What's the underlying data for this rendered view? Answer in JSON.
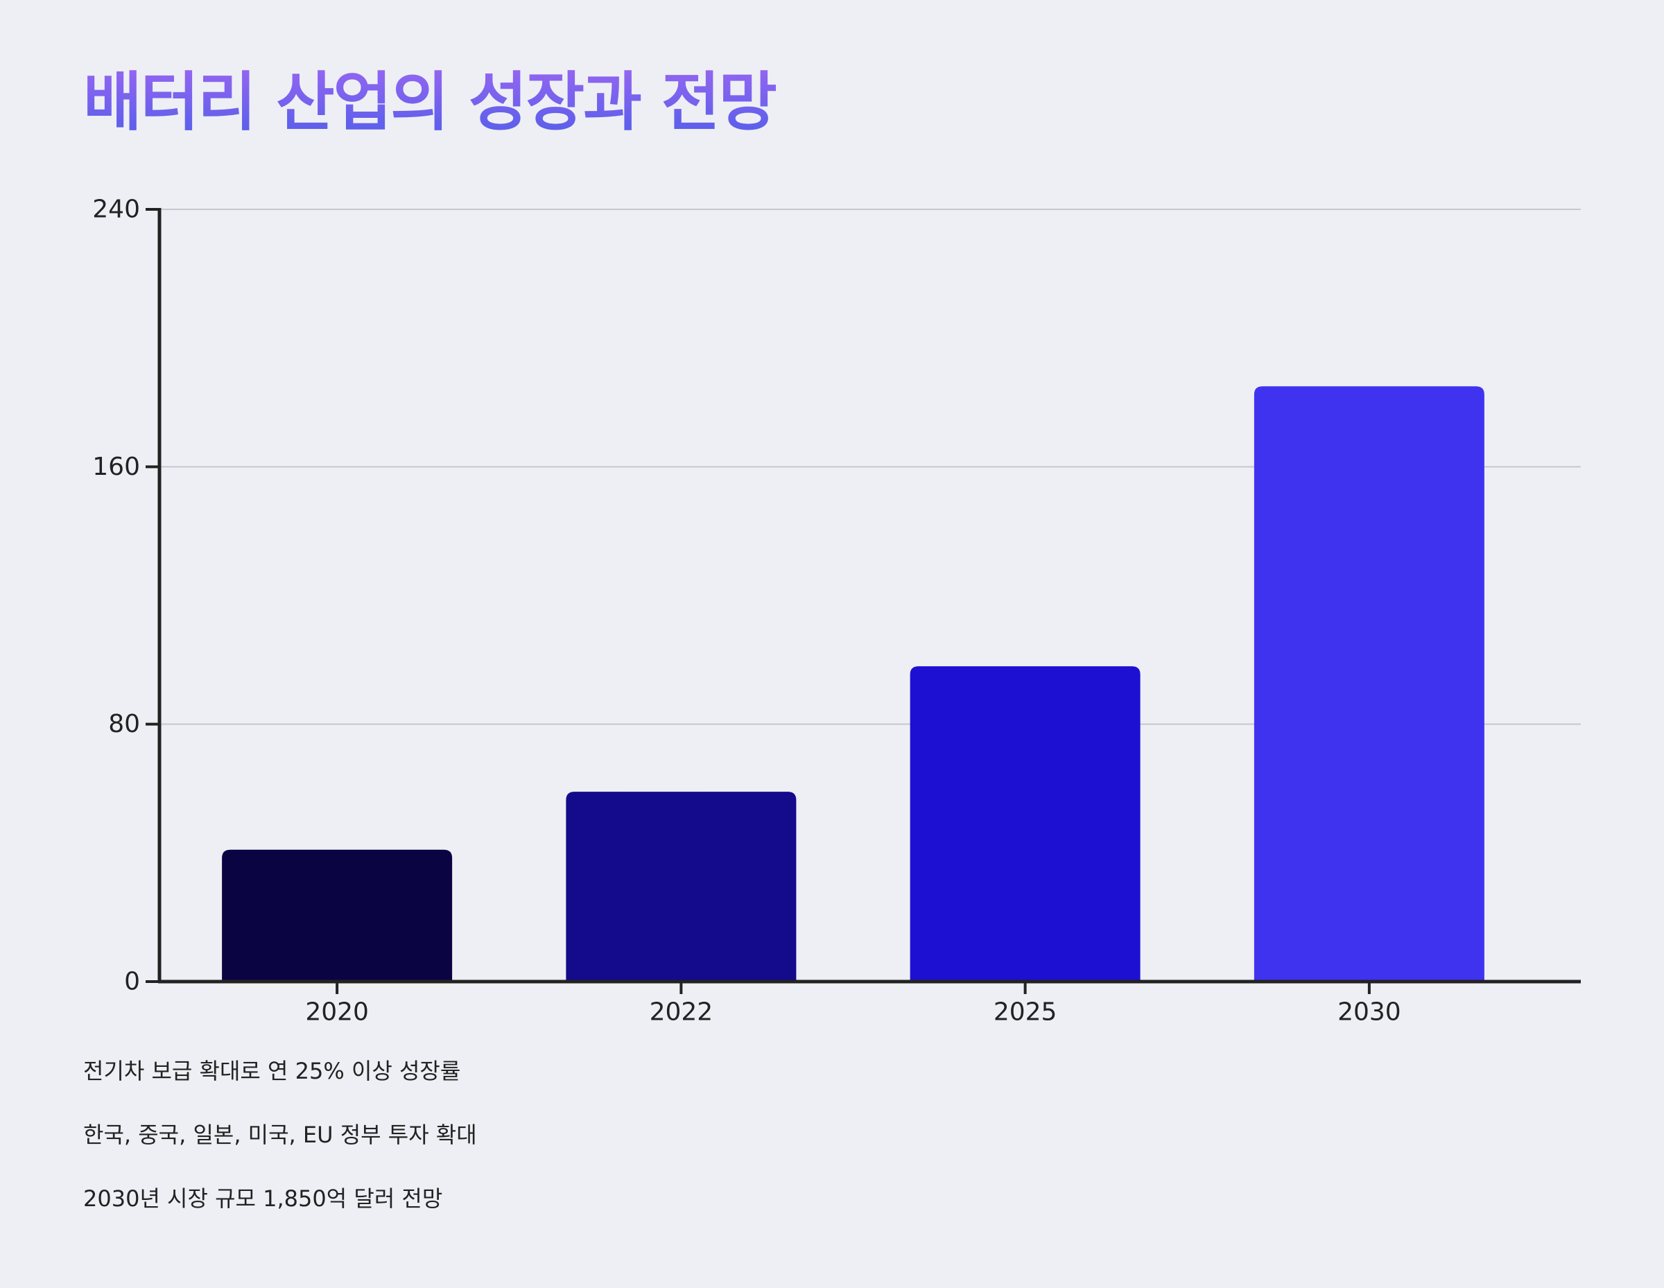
{
  "chart_data": {
    "type": "bar",
    "title": "배터리 산업의 성장과 전망",
    "categories": [
      "2020",
      "2022",
      "2025",
      "2030"
    ],
    "values": [
      41,
      59,
      98,
      185
    ],
    "ylim": [
      0,
      240
    ],
    "yticks": [
      0,
      80,
      160,
      240
    ],
    "xlabel": "",
    "ylabel": "",
    "grid": true,
    "bar_colors": [
      "#0a0442",
      "#130b8c",
      "#1d10d2",
      "#4033f0"
    ],
    "gridline_color": "#c6c7d0",
    "axis_color": "#222222"
  },
  "notes": [
    "전기차 보급 확대로 연 25% 이상 성장률",
    "한국, 중국, 일본, 미국, EU 정부 투자 확대",
    "2030년 시장 규모 1,850억 달러 전망"
  ]
}
